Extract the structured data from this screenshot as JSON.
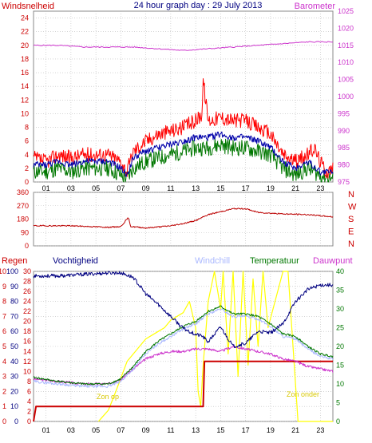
{
  "title": "24 hour graph day : 29 July 2013",
  "colors": {
    "wind": "#ff0000",
    "wind_avg": "#0000aa",
    "wind_min": "#007700",
    "baro": "#cc33cc",
    "dir": "#bb0000",
    "rain": "#cc0000",
    "hum": "#000080",
    "chill": "#aab8ff",
    "temp": "#007700",
    "dew": "#cc33cc",
    "sun": "#ffff00",
    "grid": "#bbbbbb",
    "left_axis": "#cc0000",
    "pink_axis": "#cc33cc",
    "humidity_axis": "#000080",
    "temp_axis": "#007700"
  },
  "chart_data": [
    {
      "type": "line",
      "left_label": "Windsnelheid",
      "right_label": "Barometer",
      "x_ticks": [
        "01",
        "03",
        "05",
        "07",
        "09",
        "11",
        "13",
        "15",
        "17",
        "19",
        "21",
        "23"
      ],
      "y_left_ticks": [
        "24",
        "22",
        "20",
        "18",
        "16",
        "14",
        "12",
        "10",
        "8",
        "6",
        "4",
        "2",
        "0"
      ],
      "y_right_ticks": [
        "1025",
        "1020",
        "1015",
        "1010",
        "1005",
        "1000",
        "995",
        "990",
        "985",
        "980",
        "975"
      ],
      "y_left_range": [
        0,
        25
      ],
      "y_right_range": [
        975,
        1025
      ],
      "series": [
        {
          "key": "gust",
          "x": [
            0,
            1,
            2,
            3,
            4,
            5,
            6,
            7,
            7.5,
            8,
            9,
            10,
            11,
            12,
            13,
            13.5,
            13.6,
            14,
            15,
            16,
            17,
            18,
            19,
            20,
            21,
            22,
            22.5,
            23,
            23.5,
            24
          ],
          "values": [
            3.5,
            3,
            4,
            3.5,
            4,
            4,
            4,
            3,
            1.5,
            4.5,
            6,
            7,
            7.5,
            8,
            9,
            10,
            15,
            9,
            9.5,
            9,
            9,
            8,
            7,
            4,
            3,
            4,
            5,
            3,
            1.5,
            2
          ]
        },
        {
          "key": "average",
          "x": [
            0,
            1,
            2,
            3,
            4,
            5,
            6,
            7,
            7.5,
            8,
            9,
            10,
            11,
            12,
            13,
            14,
            15,
            16,
            17,
            18,
            19,
            20,
            21,
            22,
            23,
            24
          ],
          "values": [
            2.5,
            2.5,
            3,
            2.5,
            3,
            3,
            3,
            2,
            1,
            3.5,
            4.5,
            5,
            5.5,
            6,
            6.5,
            6.5,
            7,
            6.5,
            6.5,
            6,
            5,
            3,
            2,
            3,
            1.5,
            1.5
          ]
        },
        {
          "key": "lowest",
          "x": [
            0,
            1,
            2,
            3,
            4,
            5,
            6,
            7,
            7.5,
            8,
            9,
            10,
            11,
            12,
            13,
            14,
            15,
            16,
            17,
            18,
            19,
            20,
            21,
            22,
            23,
            24
          ],
          "values": [
            1.5,
            1.5,
            2,
            1.5,
            2,
            2,
            2,
            1,
            0.5,
            2,
            3,
            3.5,
            4,
            4.5,
            5,
            5,
            5.5,
            5,
            5,
            4.5,
            4,
            2,
            1,
            2,
            1,
            0.5
          ]
        },
        {
          "key": "pressure",
          "x": [
            0,
            2,
            4,
            6,
            8,
            10,
            12,
            14,
            16,
            18,
            20,
            22,
            24
          ],
          "values": [
            1015,
            1015,
            1014.5,
            1014.5,
            1014.5,
            1014,
            1013.5,
            1014,
            1014.5,
            1015,
            1015.5,
            1016,
            1016
          ]
        }
      ]
    },
    {
      "type": "line",
      "y_left_ticks": [
        "360",
        "270",
        "180",
        "90",
        "0"
      ],
      "y_right_ticks": [
        "N",
        "W",
        "S",
        "E",
        "N"
      ],
      "y_range": [
        0,
        360
      ],
      "series": [
        {
          "key": "direction",
          "x": [
            0,
            3,
            6,
            7,
            7.6,
            7.8,
            8.5,
            9,
            11,
            12,
            13,
            14,
            15,
            16,
            17,
            18,
            20,
            22,
            24
          ],
          "values": [
            135,
            135,
            125,
            130,
            190,
            130,
            125,
            120,
            135,
            150,
            170,
            210,
            230,
            250,
            250,
            225,
            215,
            210,
            195
          ]
        }
      ]
    },
    {
      "type": "line",
      "top_labels": [
        "Regen",
        "Vochtigheid",
        "Windchill",
        "Temperatuur",
        "Dauwpunt"
      ],
      "y_left_ticks": [
        "10",
        "9",
        "8",
        "7",
        "6",
        "5",
        "4",
        "3",
        "2",
        "1",
        "0"
      ],
      "y_humidity_ticks": [
        "100",
        "90",
        "80",
        "70",
        "60",
        "50",
        "40",
        "30",
        "20",
        "10",
        "0"
      ],
      "y_temp_ticks": [
        "30",
        "28",
        "26",
        "24",
        "22",
        "20",
        "18",
        "16",
        "14",
        "12",
        "10",
        "8",
        "6",
        "4",
        "2",
        "0"
      ],
      "y_right_ticks": [
        "40",
        "35",
        "30",
        "25",
        "20",
        "15",
        "10",
        "5",
        "0"
      ],
      "y_rain_range": [
        0,
        10
      ],
      "y_humidity_range": [
        0,
        100
      ],
      "y_temp_range": [
        0,
        30
      ],
      "y_right_range": [
        0,
        40
      ],
      "annotations": [
        "Zon op",
        "Zon onder"
      ],
      "series": [
        {
          "key": "humidity",
          "x": [
            0,
            2,
            4,
            6,
            7,
            8,
            9,
            10,
            11,
            12,
            13,
            13.5,
            14,
            15,
            16,
            17,
            18,
            19,
            20,
            21,
            22,
            23,
            24
          ],
          "values": [
            97,
            97,
            98,
            99,
            99,
            96,
            85,
            78,
            70,
            62,
            58,
            57,
            53,
            63,
            50,
            52,
            60,
            59,
            65,
            80,
            88,
            91,
            91
          ]
        },
        {
          "key": "temperature",
          "x": [
            0,
            2,
            4,
            6,
            7,
            8,
            9,
            10,
            11,
            12,
            13,
            14,
            15,
            16,
            17,
            18,
            19,
            20,
            21,
            22,
            23,
            24
          ],
          "values": [
            8.8,
            8,
            7.5,
            7.5,
            8.5,
            11,
            14,
            16,
            17.5,
            19,
            20,
            22,
            23,
            21.5,
            21.5,
            21,
            19.5,
            17.5,
            17,
            15,
            13.5,
            13
          ]
        },
        {
          "key": "dewpoint",
          "x": [
            0,
            2,
            4,
            6,
            7,
            8,
            9,
            10,
            11,
            12,
            13,
            14,
            15,
            16,
            17,
            18,
            19,
            20,
            21,
            22,
            23,
            24
          ],
          "values": [
            8.5,
            8,
            7.5,
            7.5,
            8.5,
            10.5,
            12.5,
            13.5,
            14,
            14,
            14.5,
            14.5,
            14,
            15,
            14.5,
            14,
            13.5,
            12.5,
            12,
            11,
            10.5,
            10
          ]
        },
        {
          "key": "windchill",
          "x": [
            0,
            2,
            4,
            6,
            7,
            8,
            9,
            10,
            11,
            12,
            13,
            14,
            15,
            16,
            17,
            18,
            19,
            20,
            21,
            22,
            23,
            24
          ],
          "values": [
            8,
            7.5,
            7,
            7,
            8,
            10.5,
            13.5,
            15.5,
            17,
            18.5,
            19.5,
            21.5,
            22.5,
            21,
            21,
            20.5,
            19,
            17,
            16.5,
            14.5,
            13,
            12.5
          ]
        },
        {
          "key": "sun",
          "x": [
            5.2,
            6,
            6.6,
            7.5,
            8,
            9,
            10,
            10.5,
            11,
            12,
            12.5,
            13,
            13.2,
            13.4,
            13.6,
            14,
            14.5,
            15,
            15.2,
            15.6,
            16,
            16.4,
            16.8,
            17.2,
            17.6,
            18,
            18.4,
            18.8,
            20,
            20.4,
            21.2,
            24
          ],
          "values": [
            0,
            3,
            8,
            16,
            18,
            22,
            24,
            25,
            27,
            29,
            32,
            25,
            8,
            4,
            15,
            32,
            40,
            30,
            40,
            18,
            40,
            12,
            40,
            15,
            38,
            20,
            40,
            25,
            40,
            40,
            0,
            0
          ]
        },
        {
          "key": "rain",
          "x": [
            0,
            0.2,
            13.6,
            13.7,
            24
          ],
          "values": [
            0,
            1,
            1,
            4,
            4
          ]
        }
      ]
    }
  ]
}
